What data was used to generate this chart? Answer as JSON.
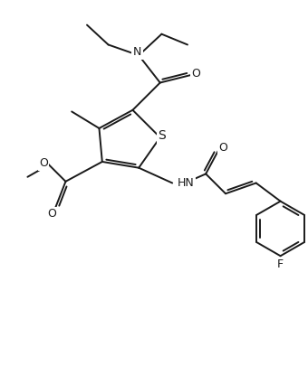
{
  "background_color": "#ffffff",
  "line_color": "#1a1a1a",
  "line_width": 1.4,
  "font_size": 9,
  "figsize": [
    3.4,
    4.05
  ],
  "dpi": 100,
  "xlim": [
    0,
    10
  ],
  "ylim": [
    0,
    12
  ]
}
